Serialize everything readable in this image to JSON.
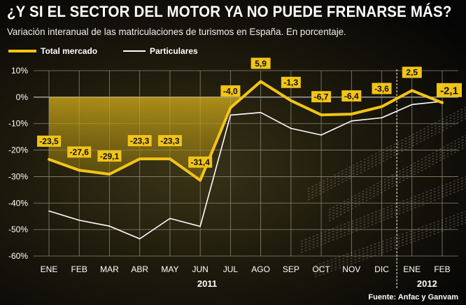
{
  "header": {
    "title": "¿Y SI EL SECTOR DEL MOTOR YA NO PUEDE FRENARSE MÁS?",
    "subtitle": "Variación interanual de las matriculaciones de turismos en España. En porcentaje."
  },
  "chart_data": {
    "type": "line",
    "title": "¿Y SI EL SECTOR DEL MOTOR YA NO PUEDE FRENARSE MÁS?",
    "subtitle": "Variación interanual de las matriculaciones de turismos en España. En porcentaje.",
    "categories": [
      "ENE",
      "FEB",
      "MAR",
      "ABR",
      "MAY",
      "JUN",
      "JUL",
      "AGO",
      "SEP",
      "OCT",
      "NOV",
      "DIC",
      "ENE",
      "FEB"
    ],
    "year_groups": [
      {
        "label": "2011",
        "start": 0,
        "end": 11
      },
      {
        "label": "2012",
        "start": 12,
        "end": 13
      }
    ],
    "series": [
      {
        "name": "Total mercado",
        "color": "#f2c417",
        "values": [
          -23.5,
          -27.6,
          -29.1,
          -23.3,
          -23.3,
          -31.4,
          -4.0,
          5.9,
          -1.3,
          -6.7,
          -6.4,
          -3.6,
          2.5,
          -2.1
        ],
        "labels": [
          "-23,5",
          "-27,6",
          "-29,1",
          "-23,3",
          "-23,3",
          "-31,4",
          "-4,0",
          "5,9",
          "-1,3",
          "-6,7",
          "-6,4",
          "-3,6",
          "2,5",
          "-2,1"
        ]
      },
      {
        "name": "Particulares",
        "color": "#ffffff",
        "values": [
          -43,
          -46.5,
          -48.7,
          -53.5,
          -45.8,
          -48.8,
          -6.8,
          -5.8,
          -11.8,
          -14.3,
          -9.0,
          -7.8,
          -2.8,
          -1.6
        ]
      }
    ],
    "y_ticks": [
      10,
      0,
      -10,
      -20,
      -30,
      -40,
      -50,
      -60
    ],
    "y_tick_labels": [
      "10%",
      "0%",
      "-10%",
      "-20%",
      "-30%",
      "-40%",
      "-50%",
      "-60%"
    ],
    "ylim": [
      -60,
      10
    ],
    "xlabel": "",
    "ylabel": "",
    "grid": true,
    "legend": "top-left",
    "source": "Fuente: Anfac y Ganvam"
  }
}
